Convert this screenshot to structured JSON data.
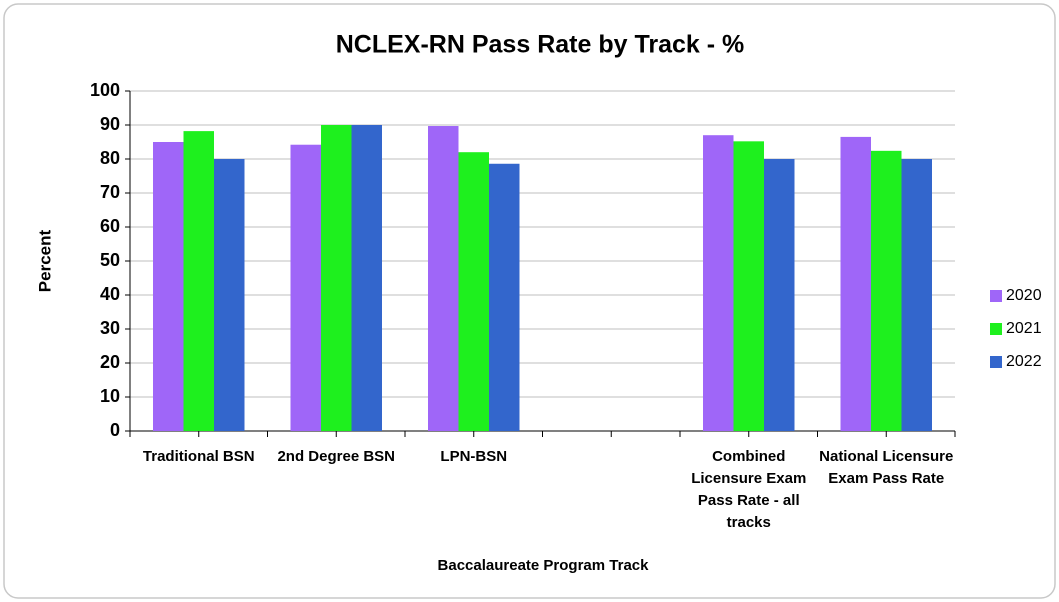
{
  "chart_data": {
    "type": "bar",
    "title": "NCLEX-RN Pass Rate by Track - %",
    "xlabel": "Baccalaureate Program Track",
    "ylabel": "Percent",
    "categories": [
      "Traditional BSN",
      "2nd Degree BSN",
      "LPN-BSN",
      null,
      "Combined Licensure Exam Pass Rate - all tracks",
      "National Licensure Exam Pass Rate"
    ],
    "series": [
      {
        "name": "2020",
        "color": "#9f66f8",
        "values": [
          85,
          84.2,
          89.7,
          null,
          87,
          86.5
        ]
      },
      {
        "name": "2021",
        "color": "#1ef01e",
        "values": [
          88.2,
          90,
          82,
          null,
          85.2,
          82.4
        ]
      },
      {
        "name": "2022",
        "color": "#3366cc",
        "values": [
          80,
          90,
          78.6,
          null,
          80,
          80
        ]
      }
    ],
    "ylim": [
      0,
      100
    ],
    "yticks": [
      0,
      10,
      20,
      30,
      40,
      50,
      60,
      70,
      80,
      90,
      100
    ],
    "grid": true,
    "legend": "right"
  }
}
